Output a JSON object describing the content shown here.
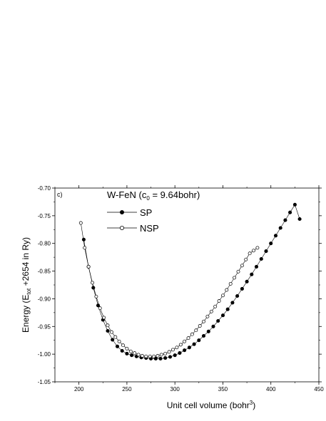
{
  "chart_data": {
    "type": "scatter",
    "panel_label": "c)",
    "legend_title": "W-FeN (c",
    "legend_title_sub": "0",
    "legend_title_rest": " = 9.64bohr)",
    "xlabel": "Unit cell volume (bohr",
    "xlabel_sup": "3",
    "xlabel_end": ")",
    "ylabel": "Energy (E",
    "ylabel_sub": "tot",
    "ylabel_end": " +2654 in Ry)",
    "xlim": [
      175,
      450
    ],
    "ylim": [
      -1.05,
      -0.7
    ],
    "xticks": [
      200,
      250,
      300,
      350,
      400,
      450
    ],
    "yticks": [
      -1.05,
      -1.0,
      -0.95,
      -0.9,
      -0.85,
      -0.8,
      -0.75,
      -0.7
    ],
    "ytick_labels": [
      "-1.05",
      "-1.00",
      "-0.95",
      "-0.90",
      "-0.85",
      "-0.80",
      "-0.75",
      "-0.70"
    ],
    "legend_placement": "top-left",
    "grid": false,
    "series": [
      {
        "name": "SP",
        "marker": "filled-circle",
        "color": "#000000",
        "x": [
          205,
          210,
          215,
          220,
          225,
          230,
          235,
          240,
          245,
          250,
          255,
          260,
          265,
          270,
          275,
          280,
          285,
          290,
          295,
          300,
          305,
          310,
          315,
          320,
          325,
          330,
          335,
          340,
          345,
          350,
          355,
          360,
          365,
          370,
          375,
          380,
          385,
          390,
          395,
          400,
          405,
          410,
          415,
          420,
          425,
          430
        ],
        "y": [
          -0.793,
          -0.842,
          -0.88,
          -0.912,
          -0.938,
          -0.958,
          -0.974,
          -0.986,
          -0.994,
          -0.999,
          -1.002,
          -1.004,
          -1.006,
          -1.007,
          -1.008,
          -1.008,
          -1.008,
          -1.007,
          -1.005,
          -1.002,
          -0.998,
          -0.993,
          -0.988,
          -0.982,
          -0.975,
          -0.967,
          -0.959,
          -0.95,
          -0.94,
          -0.93,
          -0.919,
          -0.907,
          -0.895,
          -0.882,
          -0.869,
          -0.856,
          -0.842,
          -0.828,
          -0.814,
          -0.8,
          -0.786,
          -0.772,
          -0.758,
          -0.744,
          -0.73,
          -0.756
        ]
      },
      {
        "name": "NSP",
        "marker": "open-circle",
        "color": "#000000",
        "x": [
          202,
          206,
          210,
          214,
          218,
          222,
          226,
          230,
          234,
          238,
          242,
          246,
          250,
          254,
          258,
          262,
          266,
          270,
          274,
          278,
          282,
          286,
          290,
          294,
          298,
          302,
          306,
          310,
          314,
          318,
          322,
          326,
          330,
          334,
          338,
          342,
          346,
          350,
          354,
          358,
          362,
          366,
          370,
          374,
          378,
          382,
          386
        ],
        "y": [
          -0.763,
          -0.808,
          -0.842,
          -0.871,
          -0.896,
          -0.917,
          -0.934,
          -0.948,
          -0.96,
          -0.969,
          -0.977,
          -0.984,
          -0.99,
          -0.995,
          -0.998,
          -1.001,
          -1.003,
          -1.004,
          -1.004,
          -1.004,
          -1.003,
          -1.001,
          -0.999,
          -0.996,
          -0.992,
          -0.988,
          -0.983,
          -0.977,
          -0.971,
          -0.964,
          -0.957,
          -0.949,
          -0.941,
          -0.932,
          -0.923,
          -0.914,
          -0.904,
          -0.894,
          -0.884,
          -0.873,
          -0.862,
          -0.851,
          -0.84,
          -0.829,
          -0.818,
          -0.813,
          -0.808
        ]
      }
    ]
  }
}
